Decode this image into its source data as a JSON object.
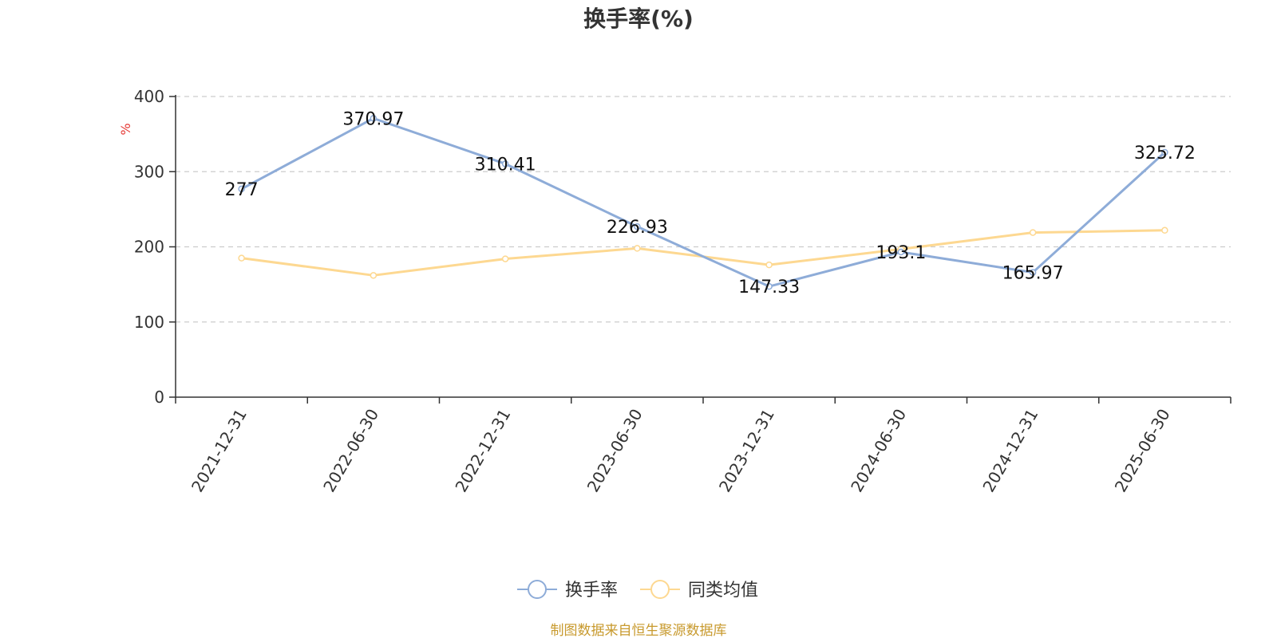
{
  "colors": {
    "series_turnover": "#8eacd8",
    "series_peer": "#fdd891",
    "unit": "#e53935",
    "source": "#c89a2e",
    "axis": "#333333",
    "grid": "#cccccc"
  },
  "source_text": "制图数据来自恒生聚源数据库",
  "chart_data": {
    "type": "line",
    "title": "换手率(%)",
    "ylabel": "%",
    "ylim": [
      0,
      400
    ],
    "yticks": [
      0,
      100,
      200,
      300,
      400
    ],
    "grid": true,
    "legend_position": "bottom-center",
    "categories": [
      "2021-12-31",
      "2022-06-30",
      "2022-12-31",
      "2023-06-30",
      "2023-12-31",
      "2024-06-30",
      "2024-12-31",
      "2025-06-30"
    ],
    "series": [
      {
        "name": "换手率",
        "values": [
          277,
          370.97,
          310.41,
          226.93,
          147.33,
          193.1,
          165.97,
          325.72
        ],
        "labels": [
          "277",
          "370.97",
          "310.41",
          "226.93",
          "147.33",
          "193.1",
          "165.97",
          "325.72"
        ]
      },
      {
        "name": "同类均值",
        "values": [
          185,
          162,
          184,
          198,
          176,
          197,
          219,
          222
        ]
      }
    ]
  }
}
